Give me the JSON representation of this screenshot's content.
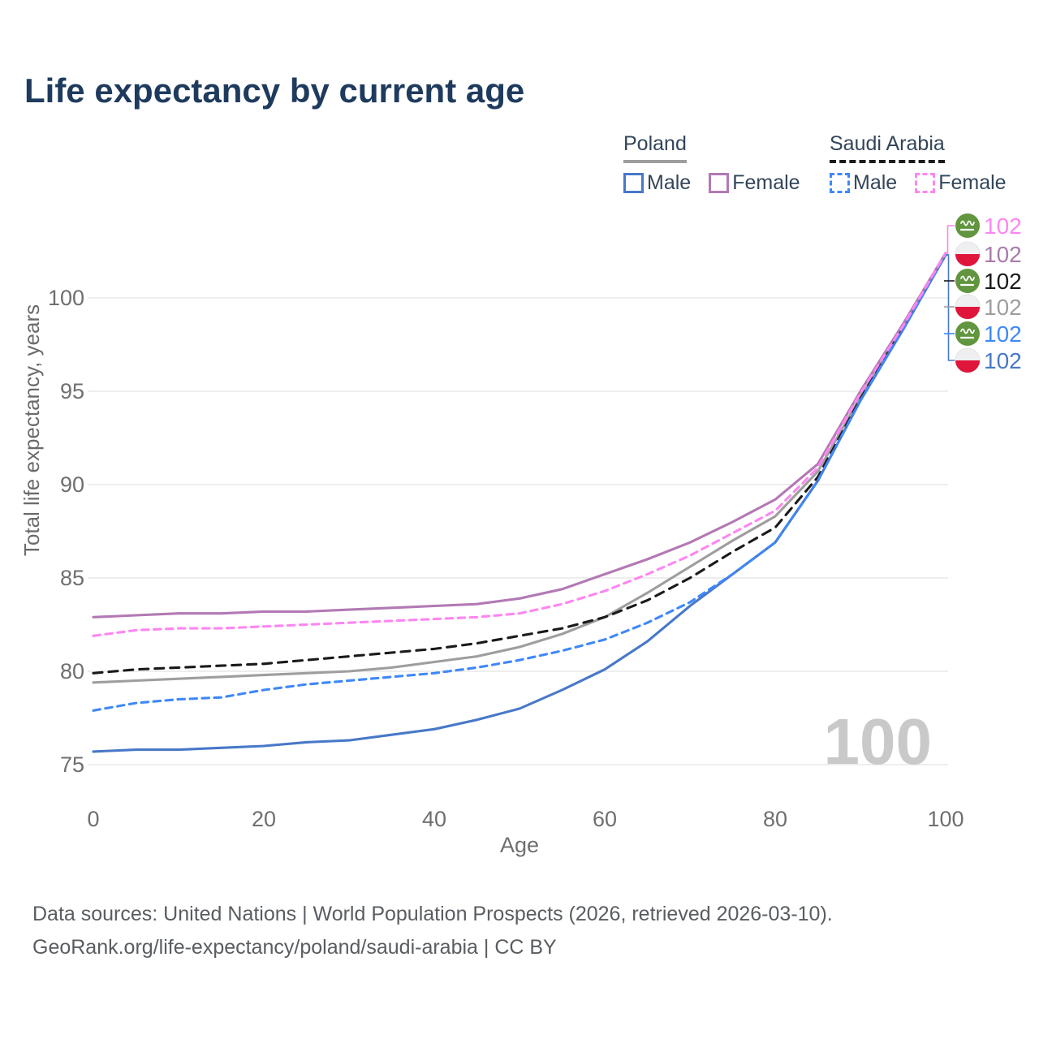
{
  "title": "Life expectancy by current age",
  "legend": {
    "groups": [
      {
        "label": "Poland",
        "line_style": "solid",
        "underline_color": "#9e9e9e",
        "items": [
          {
            "label": "Male",
            "color": "#4878c8"
          },
          {
            "label": "Female",
            "color": "#b279b4"
          }
        ]
      },
      {
        "label": "Saudi Arabia",
        "line_style": "dashed",
        "underline_color": "#1a1a1a",
        "items": [
          {
            "label": "Male",
            "color": "#3f88f8"
          },
          {
            "label": "Female",
            "color": "#fd86f2"
          }
        ]
      }
    ]
  },
  "chart_data": {
    "type": "line",
    "title": "Life expectancy by current age",
    "xlabel": "Age",
    "ylabel": "Total life expectancy, years",
    "xlim": [
      0,
      100
    ],
    "ylim": [
      75,
      103
    ],
    "x_ticks": [
      0,
      20,
      40,
      60,
      80,
      100
    ],
    "y_ticks": [
      75,
      80,
      85,
      90,
      95,
      100
    ],
    "grid": true,
    "watermark": "100",
    "x": [
      0,
      5,
      10,
      15,
      20,
      25,
      30,
      35,
      40,
      45,
      50,
      55,
      60,
      65,
      70,
      75,
      80,
      85,
      90,
      95,
      100
    ],
    "series": [
      {
        "id": "poland-total",
        "name": "Poland",
        "country": "Poland",
        "flag": "poland",
        "style": "solid",
        "color": "#9e9e9e",
        "label_color": "#9e9e9e",
        "end_label": "102",
        "values": [
          79.4,
          79.5,
          79.6,
          79.7,
          79.8,
          79.9,
          80.0,
          80.2,
          80.5,
          80.8,
          81.3,
          82.0,
          82.9,
          84.2,
          85.6,
          87.0,
          88.3,
          90.7,
          94.7,
          98.4,
          102.3
        ]
      },
      {
        "id": "saudi-total",
        "name": "Saudi Arabia",
        "country": "Saudi Arabia",
        "flag": "saudi-arabia",
        "style": "dashed",
        "color": "#1a1a1a",
        "label_color": "#1a1a1a",
        "end_label": "102",
        "values": [
          79.9,
          80.1,
          80.2,
          80.3,
          80.4,
          80.6,
          80.8,
          81.0,
          81.2,
          81.5,
          81.9,
          82.3,
          82.9,
          83.8,
          85.0,
          86.4,
          87.7,
          90.4,
          94.6,
          98.4,
          102.3
        ]
      },
      {
        "id": "poland-male",
        "name": "Male",
        "country": "Poland",
        "flag": "poland",
        "style": "solid",
        "color": "#4878c8",
        "label_color": "#4878c8",
        "end_label": "102",
        "values": [
          75.7,
          75.8,
          75.8,
          75.9,
          76.0,
          76.2,
          76.3,
          76.6,
          76.9,
          77.4,
          78.0,
          79.0,
          80.1,
          81.6,
          83.5,
          85.2,
          86.9,
          90.2,
          94.5,
          98.3,
          102.3
        ]
      },
      {
        "id": "saudi-male",
        "name": "Male",
        "country": "Saudi Arabia",
        "flag": "saudi-arabia",
        "style": "dashed",
        "color": "#3f88f8",
        "label_color": "#3f88f8",
        "end_label": "102",
        "values": [
          77.9,
          78.3,
          78.5,
          78.6,
          79.0,
          79.3,
          79.5,
          79.7,
          79.9,
          80.2,
          80.6,
          81.1,
          81.7,
          82.6,
          83.7,
          85.2,
          86.9,
          90.2,
          94.5,
          98.3,
          102.3
        ]
      },
      {
        "id": "poland-female",
        "name": "Female",
        "country": "Poland",
        "flag": "poland",
        "style": "solid",
        "color": "#b279b4",
        "label_color": "#a87cab",
        "end_label": "102",
        "values": [
          82.9,
          83.0,
          83.1,
          83.1,
          83.2,
          83.2,
          83.3,
          83.4,
          83.5,
          83.6,
          83.9,
          84.4,
          85.2,
          86.0,
          86.9,
          88.0,
          89.2,
          91.1,
          95.0,
          98.6,
          102.4
        ]
      },
      {
        "id": "saudi-female",
        "name": "Female",
        "country": "Saudi Arabia",
        "flag": "saudi-arabia",
        "style": "dashed",
        "color": "#fd86f2",
        "label_color": "#fd86f2",
        "end_label": "102",
        "values": [
          81.9,
          82.2,
          82.3,
          82.3,
          82.4,
          82.5,
          82.6,
          82.7,
          82.8,
          82.9,
          83.1,
          83.6,
          84.3,
          85.2,
          86.2,
          87.4,
          88.6,
          90.9,
          94.9,
          98.5,
          102.4
        ]
      }
    ]
  },
  "footer": {
    "line1": "Data sources: United Nations | World Population Prospects (2026, retrieved 2026-03-10).",
    "line2": "GeoRank.org/life-expectancy/poland/saudi-arabia | CC BY"
  }
}
